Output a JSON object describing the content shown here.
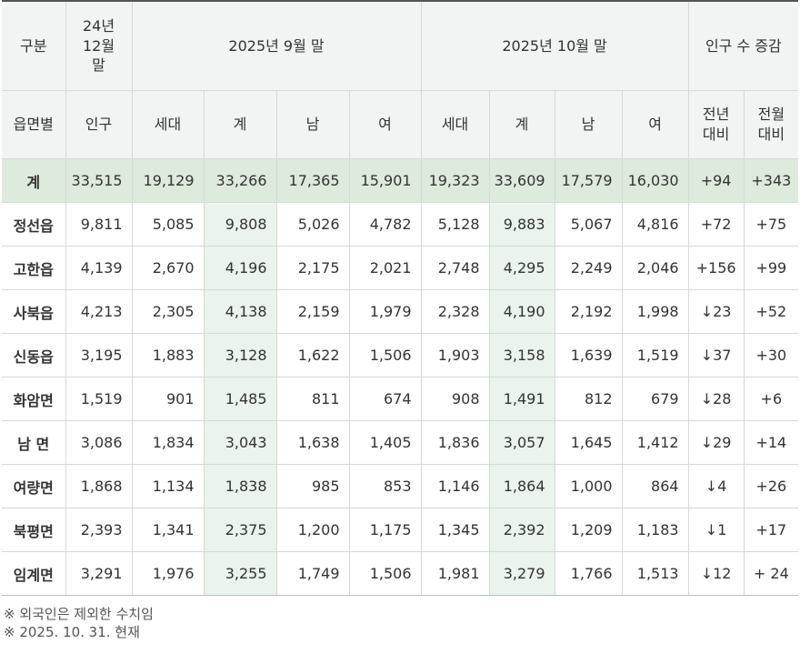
{
  "header": {
    "category": "구분",
    "base_col": [
      "24년",
      "12월",
      "말"
    ],
    "period1": "2025년 9월 말",
    "period2": "2025년 10월 말",
    "change_group": "인구 수 증감"
  },
  "subheader": {
    "region": "읍면별",
    "population": "인구",
    "households": "세대",
    "total": "계",
    "male": "남",
    "female": "여",
    "vs_prev_year": [
      "전년",
      "대비"
    ],
    "vs_prev_month": [
      "전월",
      "대비"
    ]
  },
  "rows": [
    {
      "name": "계",
      "base": "33,515",
      "p1": [
        "19,129",
        "33,266",
        "17,365",
        "15,901"
      ],
      "p2": [
        "19,323",
        "33,609",
        "17,579",
        "16,030"
      ],
      "yoy": "+94",
      "mom": "+343"
    },
    {
      "name": "정선읍",
      "base": "9,811",
      "p1": [
        "5,085",
        "9,808",
        "5,026",
        "4,782"
      ],
      "p2": [
        "5,128",
        "9,883",
        "5,067",
        "4,816"
      ],
      "yoy": "+72",
      "mom": "+75"
    },
    {
      "name": "고한읍",
      "base": "4,139",
      "p1": [
        "2,670",
        "4,196",
        "2,175",
        "2,021"
      ],
      "p2": [
        "2,748",
        "4,295",
        "2,249",
        "2,046"
      ],
      "yoy": "+156",
      "mom": "+99"
    },
    {
      "name": "사북읍",
      "base": "4,213",
      "p1": [
        "2,305",
        "4,138",
        "2,159",
        "1,979"
      ],
      "p2": [
        "2,328",
        "4,190",
        "2,192",
        "1,998"
      ],
      "yoy": "↓23",
      "mom": "+52"
    },
    {
      "name": "신동읍",
      "base": "3,195",
      "p1": [
        "1,883",
        "3,128",
        "1,622",
        "1,506"
      ],
      "p2": [
        "1,903",
        "3,158",
        "1,639",
        "1,519"
      ],
      "yoy": "↓37",
      "mom": "+30"
    },
    {
      "name": "화암면",
      "base": "1,519",
      "p1": [
        "901",
        "1,485",
        "811",
        "674"
      ],
      "p2": [
        "908",
        "1,491",
        "812",
        "679"
      ],
      "yoy": "↓28",
      "mom": "+6"
    },
    {
      "name": "남 면",
      "base": "3,086",
      "p1": [
        "1,834",
        "3,043",
        "1,638",
        "1,405"
      ],
      "p2": [
        "1,836",
        "3,057",
        "1,645",
        "1,412"
      ],
      "yoy": "↓29",
      "mom": "+14"
    },
    {
      "name": "여량면",
      "base": "1,868",
      "p1": [
        "1,134",
        "1,838",
        "985",
        "853"
      ],
      "p2": [
        "1,146",
        "1,864",
        "1,000",
        "864"
      ],
      "yoy": "↓4",
      "mom": "+26"
    },
    {
      "name": "북평면",
      "base": "2,393",
      "p1": [
        "1,341",
        "2,375",
        "1,200",
        "1,175"
      ],
      "p2": [
        "1,345",
        "2,392",
        "1,209",
        "1,183"
      ],
      "yoy": "↓1",
      "mom": "+17"
    },
    {
      "name": "임계면",
      "base": "3,291",
      "p1": [
        "1,976",
        "3,255",
        "1,749",
        "1,506"
      ],
      "p2": [
        "1,981",
        "3,279",
        "1,766",
        "1,513"
      ],
      "yoy": "↓12",
      "mom": "+ 24"
    }
  ],
  "notes": [
    "※ 외국인은 제외한 수치임",
    "※ 2025. 10. 31. 현재"
  ],
  "colors": {
    "total_row": "#dcebdc",
    "highlight_col": "#eaf3ec",
    "header_bg": "#f2f3f3",
    "border": "#d5d9d7"
  }
}
